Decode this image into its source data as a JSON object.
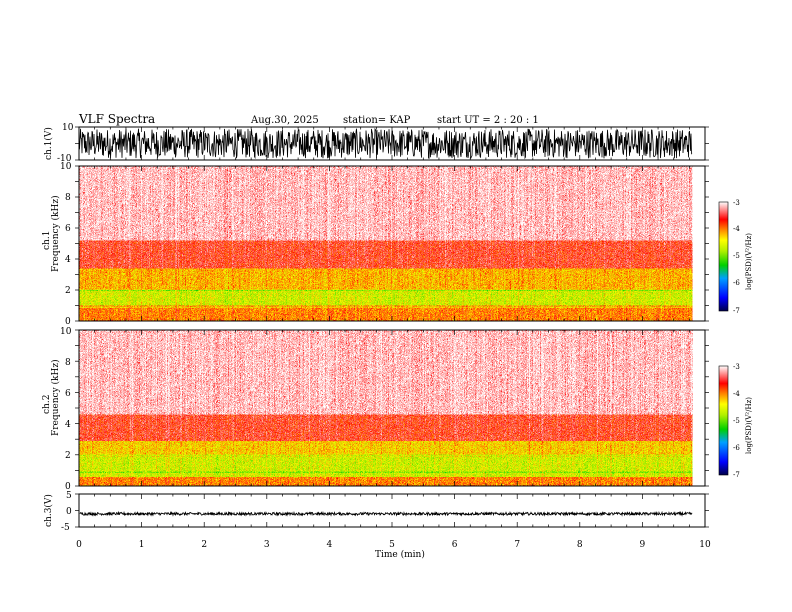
{
  "header": {
    "title": "VLF Spectra",
    "date": "Aug.30, 2025",
    "station": "station= KAP",
    "start": "start  UT  =   2  : 20 : 1"
  },
  "colors": {
    "low": "#0000aa",
    "mid_low": "#00c060",
    "mid": "#40e000",
    "mid_high": "#e8e800",
    "high": "#e80000",
    "top": "#ffffff"
  },
  "chart_data": [
    {
      "type": "line",
      "name": "ch1-waveform",
      "ylabel": "ch.1(V)",
      "ylim": [
        -10,
        10
      ],
      "yticks": [
        "10",
        "-10"
      ],
      "amplitude_range": [
        -9,
        9
      ],
      "xlim": [
        0,
        10
      ],
      "data_end_min": 9.8
    },
    {
      "type": "heatmap",
      "name": "ch1-spectrogram",
      "ylabel_channel": "ch.1",
      "ylabel": "Frequency (kHz)",
      "ylim": [
        0,
        10
      ],
      "yticks": [
        "0",
        "2",
        "4",
        "6",
        "8",
        "10"
      ],
      "xlim": [
        0,
        10
      ],
      "data_end_min": 9.8,
      "colorbar": {
        "label": "log(PSD)(V²/Hz)",
        "range": [
          -7,
          -3
        ],
        "ticks": [
          "-3",
          "-4",
          "-5",
          "-6",
          "-7"
        ]
      },
      "bands": [
        {
          "range_khz": [
            0,
            1.0
          ],
          "level": -4.0
        },
        {
          "range_khz": [
            1.0,
            2.0
          ],
          "level": -4.6
        },
        {
          "range_khz": [
            2.0,
            3.4
          ],
          "level": -4.2
        },
        {
          "range_khz": [
            3.4,
            5.2
          ],
          "level": -3.6
        },
        {
          "range_khz": [
            5.2,
            10
          ],
          "level": -3.1
        }
      ]
    },
    {
      "type": "heatmap",
      "name": "ch2-spectrogram",
      "ylabel_channel": "ch.2",
      "ylabel": "Frequency (kHz)",
      "ylim": [
        0,
        10
      ],
      "yticks": [
        "0",
        "2",
        "4",
        "6",
        "8",
        "10"
      ],
      "xlim": [
        0,
        10
      ],
      "data_end_min": 9.8,
      "colorbar": {
        "label": "log(PSD)(V²/Hz)",
        "range": [
          -7,
          -3
        ],
        "ticks": [
          "-3",
          "-4",
          "-5",
          "-6",
          "-7"
        ]
      },
      "bands": [
        {
          "range_khz": [
            0,
            0.6
          ],
          "level": -4.0
        },
        {
          "range_khz": [
            0.6,
            1.9
          ],
          "level": -4.6
        },
        {
          "range_khz": [
            1.9,
            2.9
          ],
          "level": -4.3
        },
        {
          "range_khz": [
            2.9,
            4.6
          ],
          "level": -3.6
        },
        {
          "range_khz": [
            4.6,
            10
          ],
          "level": -3.1
        }
      ]
    },
    {
      "type": "line",
      "name": "ch3-waveform",
      "ylabel": "ch.3(V)",
      "ylim": [
        -5,
        5
      ],
      "yticks": [
        "5",
        "0",
        "-5"
      ],
      "baseline": -1.0,
      "amplitude_range": [
        -1.4,
        -0.6
      ],
      "xlim": [
        0,
        10
      ],
      "data_end_min": 9.8
    }
  ],
  "xaxis": {
    "label": "Time (min)",
    "ticks": [
      "0",
      "1",
      "2",
      "3",
      "4",
      "5",
      "6",
      "7",
      "8",
      "9",
      "10"
    ],
    "range": [
      0,
      10
    ]
  }
}
